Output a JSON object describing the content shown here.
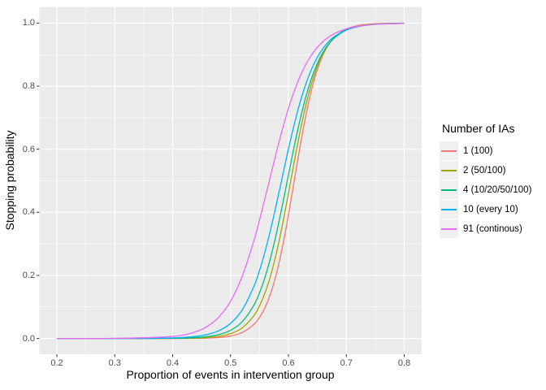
{
  "chart_data": {
    "type": "line",
    "title": "",
    "xlabel": "Proportion of events in intervention group",
    "ylabel": "Stopping probability",
    "legend_title": "Number of IAs",
    "legend_position": "right",
    "grid": true,
    "panel_background": "#EBEBEB",
    "grid_color": "#FFFFFF",
    "tick_label_color": "#4D4D4D",
    "legend_key_fill": "#F0F0F0",
    "xlim": [
      0.2,
      0.8
    ],
    "ylim": [
      0.0,
      1.0
    ],
    "x_tick_labels": [
      "0.2",
      "0.3",
      "0.4",
      "0.5",
      "0.6",
      "0.7",
      "0.8"
    ],
    "x_ticks": [
      0.2,
      0.3,
      0.4,
      0.5,
      0.6,
      0.7,
      0.8
    ],
    "y_tick_labels": [
      "0.0",
      "0.2",
      "0.4",
      "0.6",
      "0.8",
      "1.0"
    ],
    "y_ticks": [
      0.0,
      0.2,
      0.4,
      0.6,
      0.8,
      1.0
    ],
    "x_minor_ticks": [
      0.25,
      0.35,
      0.45,
      0.55,
      0.65,
      0.75
    ],
    "y_minor_ticks": [
      0.1,
      0.3,
      0.5,
      0.7,
      0.9
    ],
    "x": [
      0.2,
      0.3,
      0.4,
      0.44,
      0.46,
      0.48,
      0.5,
      0.52,
      0.54,
      0.55,
      0.56,
      0.57,
      0.58,
      0.59,
      0.6,
      0.61,
      0.62,
      0.63,
      0.64,
      0.65,
      0.66,
      0.67,
      0.68,
      0.7,
      0.72,
      0.74,
      0.76,
      0.8
    ],
    "series": [
      {
        "name": "1 (100)",
        "color": "#F8766D",
        "y": [
          0,
          0,
          0.0001,
          0.0006,
          0.0014,
          0.0033,
          0.0078,
          0.0187,
          0.044,
          0.0667,
          0.0997,
          0.1469,
          0.2108,
          0.2932,
          0.3917,
          0.5,
          0.6083,
          0.7068,
          0.7892,
          0.8531,
          0.9003,
          0.9333,
          0.956,
          0.9813,
          0.9922,
          0.9967,
          0.9986,
          0.9998
        ]
      },
      {
        "name": "2 (50/100)",
        "color": "#A3A500",
        "y": [
          0,
          0,
          0.0003,
          0.0014,
          0.0031,
          0.007,
          0.0154,
          0.0335,
          0.0717,
          0.1034,
          0.1469,
          0.2044,
          0.2769,
          0.3636,
          0.4601,
          0.5597,
          0.6548,
          0.7389,
          0.8085,
          0.8629,
          0.9039,
          0.9333,
          0.9544,
          0.979,
          0.9904,
          0.9957,
          0.998,
          0.9996
        ]
      },
      {
        "name": "4 (10/20/50/100)",
        "color": "#00BF7D",
        "y": [
          0,
          0,
          0.0007,
          0.0029,
          0.006,
          0.0125,
          0.0259,
          0.0528,
          0.1046,
          0.1448,
          0.1969,
          0.2619,
          0.3394,
          0.4265,
          0.5185,
          0.6092,
          0.693,
          0.7657,
          0.8255,
          0.8726,
          0.9084,
          0.9348,
          0.9541,
          0.9776,
          0.9891,
          0.9948,
          0.9975,
          0.9994
        ]
      },
      {
        "name": "10 (every 10)",
        "color": "#00B0F6",
        "y": [
          0,
          0.0001,
          0.0017,
          0.0065,
          0.0127,
          0.0248,
          0.0478,
          0.0901,
          0.1637,
          0.2155,
          0.2785,
          0.3516,
          0.4324,
          0.517,
          0.6006,
          0.6787,
          0.748,
          0.8066,
          0.8542,
          0.8917,
          0.9204,
          0.942,
          0.958,
          0.9783,
          0.9889,
          0.9943,
          0.9971,
          0.9993
        ]
      },
      {
        "name": "91 (continous)",
        "color": "#E76BF3",
        "y": [
          0,
          0.0003,
          0.0066,
          0.0217,
          0.0388,
          0.0685,
          0.118,
          0.1963,
          0.3079,
          0.3752,
          0.4477,
          0.5225,
          0.5963,
          0.666,
          0.729,
          0.7841,
          0.8306,
          0.8688,
          0.8993,
          0.9234,
          0.9422,
          0.9564,
          0.9674,
          0.9818,
          0.9899,
          0.9944,
          0.997,
          0.9991
        ]
      }
    ]
  }
}
